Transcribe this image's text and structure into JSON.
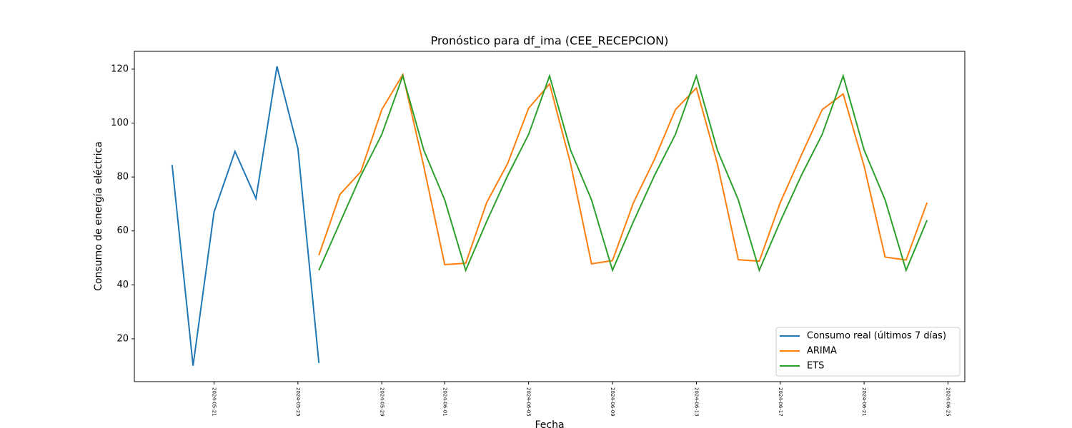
{
  "chart_data": {
    "type": "line",
    "title": "Pronóstico para df_ima (CEE_RECEPCION)",
    "x_label": "Fecha",
    "y_label": "Consumo de energía eléctrica",
    "legend": "lower right",
    "ylim": [
      4.1,
      126.6
    ],
    "yticks": [
      20,
      40,
      60,
      80,
      100,
      120
    ],
    "xticks": [
      "2024-05-21",
      "2024-05-25",
      "2024-05-29",
      "2024-06-01",
      "2024-06-05",
      "2024-06-09",
      "2024-06-13",
      "2024-06-17",
      "2024-06-21",
      "2024-06-25"
    ],
    "series": [
      {
        "name": "Consumo real (últimos 7 días)",
        "color": "#1f77b4",
        "x": [
          "2024-05-19",
          "2024-05-20",
          "2024-05-21",
          "2024-05-22",
          "2024-05-23",
          "2024-05-24",
          "2024-05-25",
          "2024-05-26"
        ],
        "values": [
          84.5,
          10,
          67,
          89.5,
          72,
          121,
          90.5,
          11
        ]
      },
      {
        "name": "ARIMA",
        "color": "#ff7f0e",
        "x": [
          "2024-05-26",
          "2024-05-27",
          "2024-05-28",
          "2024-05-29",
          "2024-05-30",
          "2024-05-31",
          "2024-06-01",
          "2024-06-02",
          "2024-06-03",
          "2024-06-04",
          "2024-06-05",
          "2024-06-06",
          "2024-06-07",
          "2024-06-08",
          "2024-06-09",
          "2024-06-10",
          "2024-06-11",
          "2024-06-12",
          "2024-06-13",
          "2024-06-14",
          "2024-06-15",
          "2024-06-16",
          "2024-06-17",
          "2024-06-18",
          "2024-06-19",
          "2024-06-20",
          "2024-06-21",
          "2024-06-22",
          "2024-06-23",
          "2024-06-24"
        ],
        "values": [
          51,
          73.5,
          82,
          105,
          118,
          84,
          47.5,
          48,
          70.5,
          85,
          105.5,
          114.5,
          85,
          47.8,
          49,
          70.5,
          86.5,
          105,
          113,
          85,
          49.3,
          48.8,
          70.5,
          88,
          105,
          110.8,
          84,
          50.3,
          49.2,
          70.5
        ]
      },
      {
        "name": "ETS",
        "color": "#2ca02c",
        "x": [
          "2024-05-26",
          "2024-05-27",
          "2024-05-28",
          "2024-05-29",
          "2024-05-30",
          "2024-05-31",
          "2024-06-01",
          "2024-06-02",
          "2024-06-03",
          "2024-06-04",
          "2024-06-05",
          "2024-06-06",
          "2024-06-07",
          "2024-06-08",
          "2024-06-09",
          "2024-06-10",
          "2024-06-11",
          "2024-06-12",
          "2024-06-13",
          "2024-06-14",
          "2024-06-15",
          "2024-06-16",
          "2024-06-17",
          "2024-06-18",
          "2024-06-19",
          "2024-06-20",
          "2024-06-21",
          "2024-06-22",
          "2024-06-23",
          "2024-06-24"
        ],
        "values": [
          45.4,
          63,
          80.5,
          95.8,
          117.5,
          90,
          71.5,
          45.4,
          63.5,
          80.5,
          95.8,
          117.5,
          90,
          71.5,
          45.4,
          63.5,
          80.5,
          95.8,
          117.5,
          90,
          71.5,
          45.4,
          63.5,
          80.5,
          95.8,
          117.5,
          90,
          71.5,
          45.4,
          64
        ]
      }
    ]
  }
}
